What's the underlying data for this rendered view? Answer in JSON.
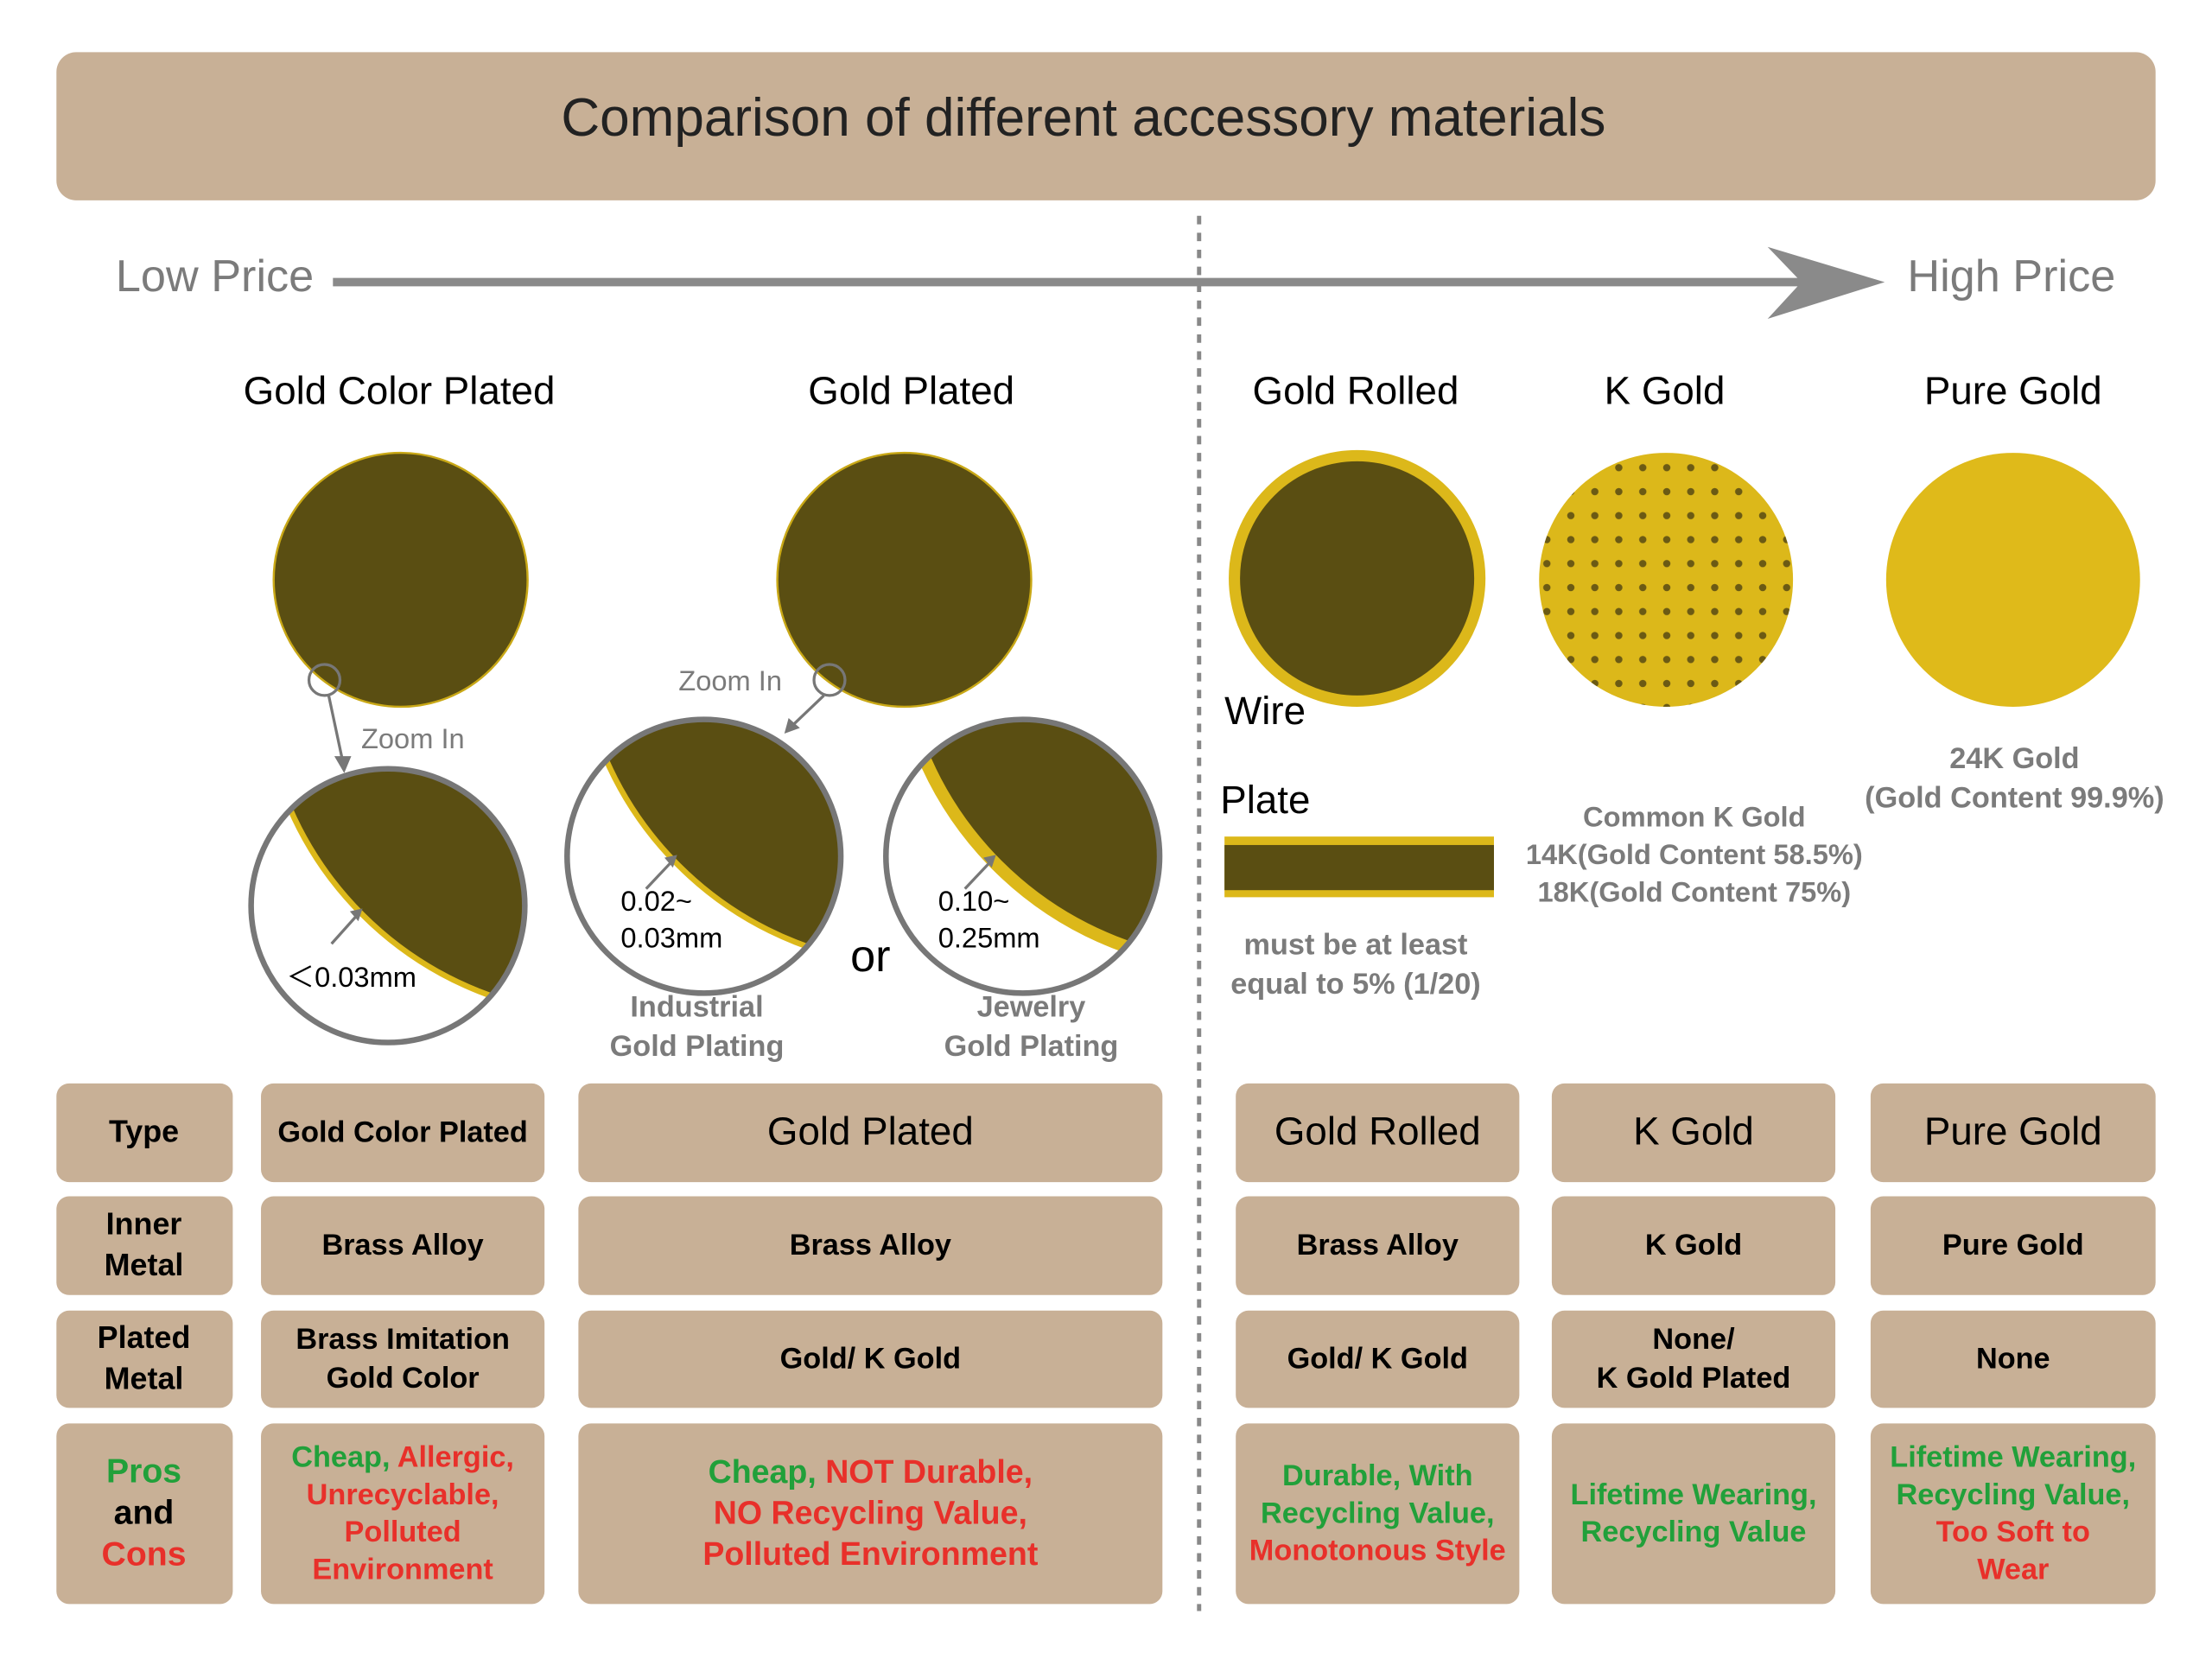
{
  "header": {
    "title": "Comparison of different accessory materials"
  },
  "price_scale": {
    "low": "Low Price",
    "high": "High Price"
  },
  "materials": [
    "Gold Color Plated",
    "Gold Plated",
    "Gold Rolled",
    "K Gold",
    "Pure Gold"
  ],
  "illustrations": {
    "gold_color_plated": {
      "zoom": "Zoom In",
      "thickness": "＜0.03mm"
    },
    "gold_plated": {
      "zoom": "Zoom In",
      "or": "or",
      "industrial": {
        "thickness": [
          "0.02~",
          "0.03mm"
        ],
        "caption": [
          "Industrial",
          "Gold Plating"
        ]
      },
      "jewelry": {
        "thickness": [
          "0.10~",
          "0.25mm"
        ],
        "caption": [
          "Jewelry",
          "Gold Plating"
        ]
      }
    },
    "gold_rolled": {
      "wire": "Wire",
      "plate": "Plate",
      "note": [
        "must be at least",
        "equal to 5% (1/20)"
      ]
    },
    "k_gold": {
      "lines": [
        "Common K Gold",
        "14K(Gold Content 58.5%)",
        "18K(Gold Content 75%)"
      ]
    },
    "pure_gold": {
      "lines": [
        "24K Gold",
        "(Gold Content 99.9%)"
      ]
    }
  },
  "table": {
    "rows": [
      {
        "header": "Type",
        "cells": [
          "Gold Color Plated",
          "Gold Plated",
          "Gold Rolled",
          "K Gold",
          "Pure Gold"
        ]
      },
      {
        "header": [
          "Inner",
          "Metal"
        ],
        "cells": [
          "Brass Alloy",
          "Brass Alloy",
          "Brass Alloy",
          "K Gold",
          "Pure Gold"
        ]
      },
      {
        "header": [
          "Plated",
          "Metal"
        ],
        "cells": [
          [
            "Brass Imitation",
            "Gold Color"
          ],
          "Gold/ K Gold",
          "Gold/ K Gold",
          [
            "None/",
            "K Gold Plated"
          ],
          "None"
        ]
      },
      {
        "header": [
          [
            {
              "text": "Pros",
              "color": "#21a03a"
            }
          ],
          [
            {
              "text": "and"
            }
          ],
          [
            {
              "text": "Cons",
              "color": "#e8302a"
            }
          ]
        ],
        "cells": [
          [
            [
              {
                "text": "Cheap,",
                "color": "#21a03a"
              },
              {
                "text": " Allergic,",
                "color": "#e8302a"
              }
            ],
            [
              {
                "text": "Unrecyclable,",
                "color": "#e8302a"
              }
            ],
            [
              {
                "text": "Polluted",
                "color": "#e8302a"
              }
            ],
            [
              {
                "text": "Environment",
                "color": "#e8302a"
              }
            ]
          ],
          [
            [
              {
                "text": "Cheap,",
                "color": "#21a03a"
              },
              {
                "text": " NOT Durable,",
                "color": "#e8302a"
              }
            ],
            [
              {
                "text": "NO Recycling Value,",
                "color": "#e8302a"
              }
            ],
            [
              {
                "text": "Polluted Environment",
                "color": "#e8302a"
              }
            ]
          ],
          [
            [
              {
                "text": "Durable, With",
                "color": "#21a03a"
              }
            ],
            [
              {
                "text": "Recycling Value,",
                "color": "#21a03a"
              }
            ],
            [
              {
                "text": "Monotonous Style",
                "color": "#e8302a"
              }
            ]
          ],
          [
            [
              {
                "text": "Lifetime Wearing,",
                "color": "#21a03a"
              }
            ],
            [
              {
                "text": "Recycling Value",
                "color": "#21a03a"
              }
            ]
          ],
          [
            [
              {
                "text": "Lifetime Wearing,",
                "color": "#21a03a"
              }
            ],
            [
              {
                "text": "Recycling Value,",
                "color": "#21a03a"
              }
            ],
            [
              {
                "text": "Too Soft to",
                "color": "#e8302a"
              }
            ],
            [
              {
                "text": "Wear",
                "color": "#e8302a"
              }
            ]
          ]
        ]
      }
    ]
  }
}
